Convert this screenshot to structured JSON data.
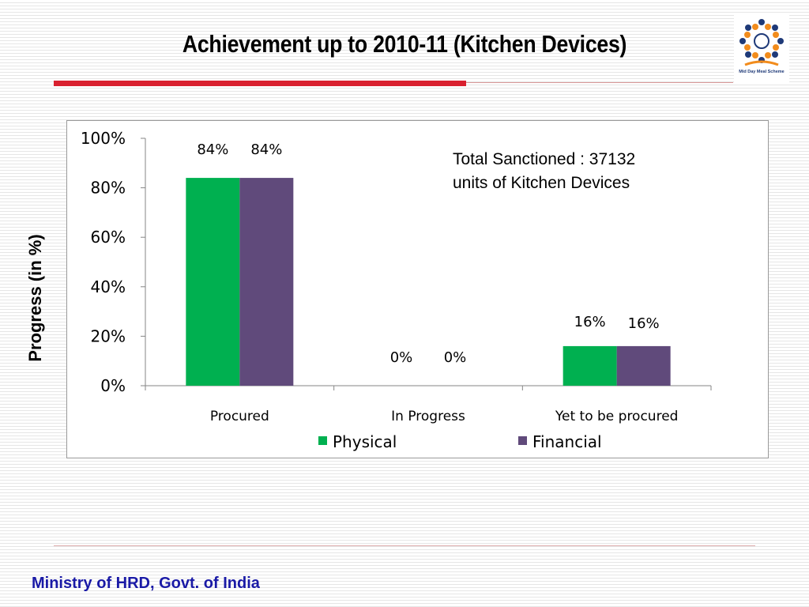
{
  "slide": {
    "title": "Achievement up to 2010-11 (Kitchen Devices)",
    "logo_caption": "Mid Day Meal Scheme",
    "annotation_line1": "Total Sanctioned : 37132",
    "annotation_line2": "units of Kitchen Devices",
    "footer": "Ministry of HRD, Govt. of India"
  },
  "colors": {
    "physical": "#00b050",
    "financial": "#604a7b",
    "title_rule": "#d9212f",
    "footer_text": "#1a1aa6"
  },
  "chart_data": {
    "type": "bar",
    "categories": [
      "Procured",
      "In Progress",
      "Yet to be procured"
    ],
    "series": [
      {
        "name": "Physical",
        "values": [
          84,
          0,
          16
        ],
        "labels": [
          "84%",
          "0%",
          "16%"
        ]
      },
      {
        "name": "Financial",
        "values": [
          84,
          0,
          16
        ],
        "labels": [
          "84%",
          "0%",
          "16%"
        ]
      }
    ],
    "ylabel": "Progress (in %)",
    "xlabel": "",
    "ylim": [
      0,
      100
    ],
    "yticks": [
      "0%",
      "20%",
      "40%",
      "60%",
      "80%",
      "100%"
    ],
    "grid": false,
    "legend_position": "bottom"
  }
}
